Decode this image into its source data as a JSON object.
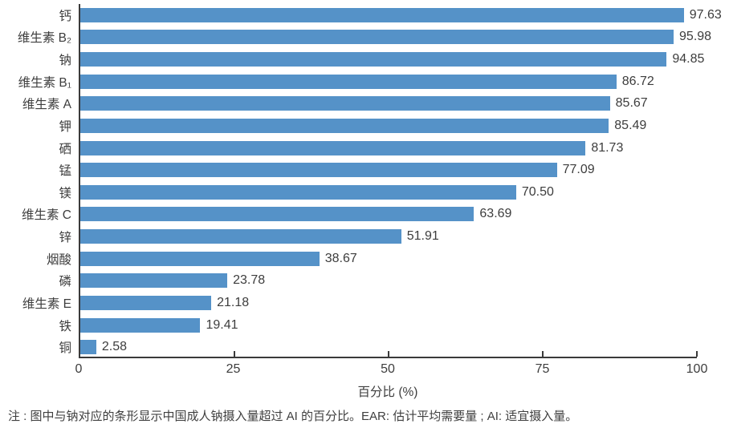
{
  "chart_data": {
    "type": "bar",
    "orientation": "horizontal",
    "categories": [
      "钙",
      "维生素 B₂",
      "钠",
      "维生素 B₁",
      "维生素 A",
      "钾",
      "硒",
      "锰",
      "镁",
      "维生素 C",
      "锌",
      "烟酸",
      "磷",
      "维生素 E",
      "铁",
      "铜"
    ],
    "values": [
      97.63,
      95.98,
      94.85,
      86.72,
      85.67,
      85.49,
      81.73,
      77.09,
      70.5,
      63.69,
      51.91,
      38.67,
      23.78,
      21.18,
      19.41,
      2.58
    ],
    "value_labels": [
      "97.63",
      "95.98",
      "94.85",
      "86.72",
      "85.67",
      "85.49",
      "81.73",
      "77.09",
      "70.50",
      "63.69",
      "51.91",
      "38.67",
      "23.78",
      "21.18",
      "19.41",
      "2.58"
    ],
    "title": "",
    "xlabel": "百分比 (%)",
    "ylabel": "",
    "xlim": [
      0,
      100
    ],
    "xticks": [
      0,
      25,
      50,
      75,
      100
    ],
    "grid": false,
    "legend_position": "none",
    "bar_color": "#5592c8",
    "axis_color": "#3a3a3a",
    "text_color": "#3d3d3d"
  },
  "note": "注 : 图中与钠对应的条形显示中国成人钠摄入量超过 AI 的百分比。EAR: 估计平均需要量 ; AI: 适宜摄入量。"
}
